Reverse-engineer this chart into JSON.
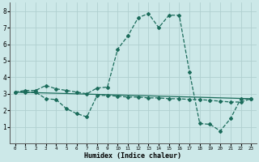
{
  "xlabel": "Humidex (Indice chaleur)",
  "background_color": "#cce8e8",
  "grid_color": "#b0d0d0",
  "line_color": "#1a6b5a",
  "xlim": [
    -0.5,
    23.5
  ],
  "ylim": [
    0,
    8.5
  ],
  "xticks": [
    0,
    1,
    2,
    3,
    4,
    5,
    6,
    7,
    8,
    9,
    10,
    11,
    12,
    13,
    14,
    15,
    16,
    17,
    18,
    19,
    20,
    21,
    22,
    23
  ],
  "yticks": [
    1,
    2,
    3,
    4,
    5,
    6,
    7,
    8
  ],
  "series1_x": [
    0,
    1,
    2,
    3,
    4,
    5,
    6,
    7,
    8,
    9,
    10,
    11,
    12,
    13,
    14,
    15,
    16,
    17,
    18,
    19,
    20,
    21,
    22,
    23
  ],
  "series1_y": [
    3.1,
    3.2,
    3.2,
    3.5,
    3.3,
    3.2,
    3.1,
    3.0,
    3.35,
    3.4,
    5.7,
    6.5,
    7.6,
    7.85,
    7.0,
    7.75,
    7.75,
    4.3,
    1.2,
    1.15,
    0.75,
    1.5,
    2.7,
    2.7
  ],
  "series2_x": [
    0,
    1,
    2,
    3,
    4,
    5,
    6,
    7,
    8,
    9,
    10,
    11,
    12,
    13,
    14,
    15,
    16,
    17,
    18,
    19,
    20,
    21,
    22,
    23
  ],
  "series2_y": [
    3.1,
    3.1,
    3.1,
    2.7,
    2.65,
    2.1,
    1.8,
    1.6,
    2.9,
    2.9,
    2.85,
    2.8,
    2.8,
    2.75,
    2.75,
    2.7,
    2.7,
    2.65,
    2.65,
    2.6,
    2.55,
    2.5,
    2.5,
    2.7
  ],
  "series3_x": [
    0,
    23
  ],
  "series3_y": [
    3.1,
    2.7
  ]
}
